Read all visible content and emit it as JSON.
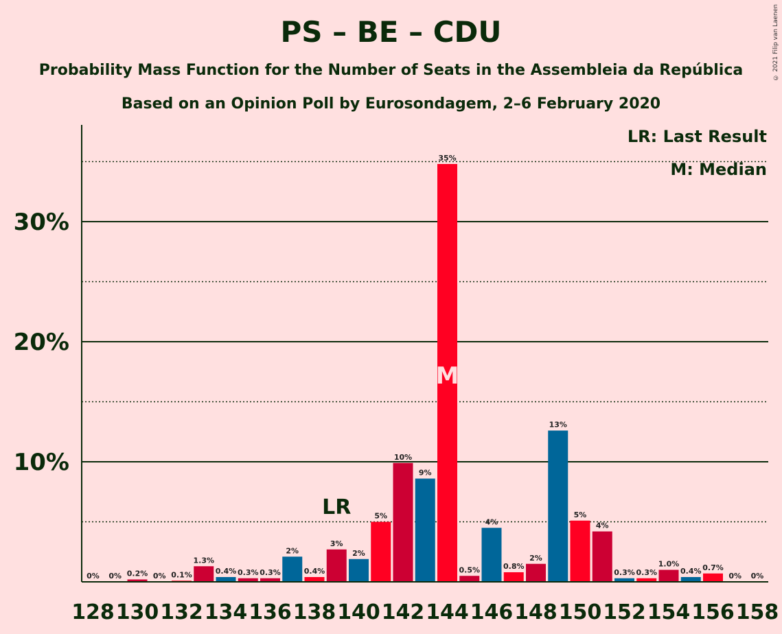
{
  "title": "PS – BE – CDU",
  "subtitle": "Probability Mass Function for the Number of Seats in the Assembleia da República",
  "subtitle2": "Based on an Opinion Poll by Eurosondagem, 2–6 February 2020",
  "copyright": "© 2021 Filip van Laenen",
  "legend": {
    "last_result": "LR: Last Result",
    "median": "M: Median"
  },
  "markers": {
    "last_result_label": "LR",
    "last_result_seat": 139,
    "median_label": "M",
    "median_seat": 144
  },
  "colors": {
    "background": "#FFE0E0",
    "red": "#FF0022",
    "crimson": "#CC0033",
    "blue": "#006699",
    "text": "#0A2A0A"
  },
  "chart_data": {
    "type": "bar",
    "xlabel": "",
    "ylabel": "",
    "ylim": [
      0,
      38
    ],
    "y_ticks": [
      {
        "value": 10,
        "label": "10%"
      },
      {
        "value": 20,
        "label": "20%"
      },
      {
        "value": 30,
        "label": "30%"
      }
    ],
    "y_dotted": [
      5,
      15,
      25,
      35
    ],
    "x_tick_labels": [
      "128",
      "130",
      "132",
      "134",
      "136",
      "138",
      "140",
      "142",
      "144",
      "146",
      "148",
      "150",
      "152",
      "154",
      "156",
      "158"
    ],
    "bars": [
      {
        "seats": 128,
        "value": 0,
        "label": "0%",
        "color": "crimson"
      },
      {
        "seats": 129,
        "value": 0,
        "label": "0%",
        "color": "blue"
      },
      {
        "seats": 130,
        "value": 0.2,
        "label": "0.2%",
        "color": "crimson"
      },
      {
        "seats": 131,
        "value": 0,
        "label": "0%",
        "color": "blue"
      },
      {
        "seats": 132,
        "value": 0.1,
        "label": "0.1%",
        "color": "red"
      },
      {
        "seats": 133,
        "value": 1.3,
        "label": "1.3%",
        "color": "crimson"
      },
      {
        "seats": 134,
        "value": 0.4,
        "label": "0.4%",
        "color": "blue"
      },
      {
        "seats": 135,
        "value": 0.3,
        "label": "0.3%",
        "color": "crimson"
      },
      {
        "seats": 136,
        "value": 0.3,
        "label": "0.3%",
        "color": "crimson"
      },
      {
        "seats": 137,
        "value": 2.1,
        "label": "2%",
        "color": "blue"
      },
      {
        "seats": 138,
        "value": 0.4,
        "label": "0.4%",
        "color": "red"
      },
      {
        "seats": 139,
        "value": 2.7,
        "label": "3%",
        "color": "crimson"
      },
      {
        "seats": 140,
        "value": 1.9,
        "label": "2%",
        "color": "blue"
      },
      {
        "seats": 141,
        "value": 5.0,
        "label": "5%",
        "color": "red"
      },
      {
        "seats": 142,
        "value": 9.9,
        "label": "10%",
        "color": "crimson"
      },
      {
        "seats": 143,
        "value": 8.6,
        "label": "9%",
        "color": "blue"
      },
      {
        "seats": 144,
        "value": 34.8,
        "label": "35%",
        "color": "red"
      },
      {
        "seats": 145,
        "value": 0.5,
        "label": "0.5%",
        "color": "crimson"
      },
      {
        "seats": 146,
        "value": 4.5,
        "label": "4%",
        "color": "blue"
      },
      {
        "seats": 147,
        "value": 0.8,
        "label": "0.8%",
        "color": "red"
      },
      {
        "seats": 148,
        "value": 1.5,
        "label": "2%",
        "color": "crimson"
      },
      {
        "seats": 149,
        "value": 12.6,
        "label": "13%",
        "color": "blue"
      },
      {
        "seats": 150,
        "value": 5.1,
        "label": "5%",
        "color": "red"
      },
      {
        "seats": 151,
        "value": 4.2,
        "label": "4%",
        "color": "crimson"
      },
      {
        "seats": 152,
        "value": 0.3,
        "label": "0.3%",
        "color": "blue"
      },
      {
        "seats": 153,
        "value": 0.3,
        "label": "0.3%",
        "color": "red"
      },
      {
        "seats": 154,
        "value": 1.0,
        "label": "1.0%",
        "color": "crimson"
      },
      {
        "seats": 155,
        "value": 0.4,
        "label": "0.4%",
        "color": "blue"
      },
      {
        "seats": 156,
        "value": 0.7,
        "label": "0.7%",
        "color": "red"
      },
      {
        "seats": 157,
        "value": 0,
        "label": "0%",
        "color": "crimson"
      },
      {
        "seats": 158,
        "value": 0,
        "label": "0%",
        "color": "blue"
      }
    ]
  }
}
